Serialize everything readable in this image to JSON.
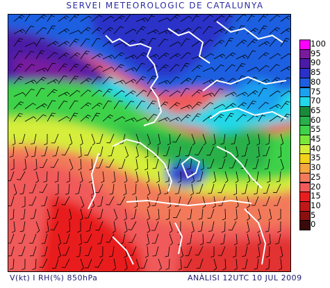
{
  "title": "SERVEI METEOROLOGIC DE CATALUNYA",
  "footer_left": "V(kt) I RH(%) 850hPa",
  "footer_right": "ANÀLISI 12UTC 10 JUL 2009",
  "legend": {
    "entries": [
      {
        "label": "100",
        "color": "#ff00ff"
      },
      {
        "label": "95",
        "color": "#7a1a9e"
      },
      {
        "label": "90",
        "color": "#4b1aa6"
      },
      {
        "label": "85",
        "color": "#2a30c8"
      },
      {
        "label": "80",
        "color": "#1e5fe0"
      },
      {
        "label": "75",
        "color": "#1ea0f0"
      },
      {
        "label": "70",
        "color": "#22d8e8"
      },
      {
        "label": "65",
        "color": "#1a8a3a"
      },
      {
        "label": "60",
        "color": "#2ab04a"
      },
      {
        "label": "55",
        "color": "#3ed24a"
      },
      {
        "label": "45",
        "color": "#7ae83a"
      },
      {
        "label": "40",
        "color": "#d6ee3a"
      },
      {
        "label": "35",
        "color": "#f2d21a"
      },
      {
        "label": "30",
        "color": "#f5a640"
      },
      {
        "label": "25",
        "color": "#f27a5a"
      },
      {
        "label": "20",
        "color": "#f25a5a"
      },
      {
        "label": "15",
        "color": "#e81e1e"
      },
      {
        "label": "10",
        "color": "#c01818"
      },
      {
        "label": "5",
        "color": "#8a1010"
      },
      {
        "label": "0",
        "color": "#3a0a0a"
      }
    ]
  }
}
